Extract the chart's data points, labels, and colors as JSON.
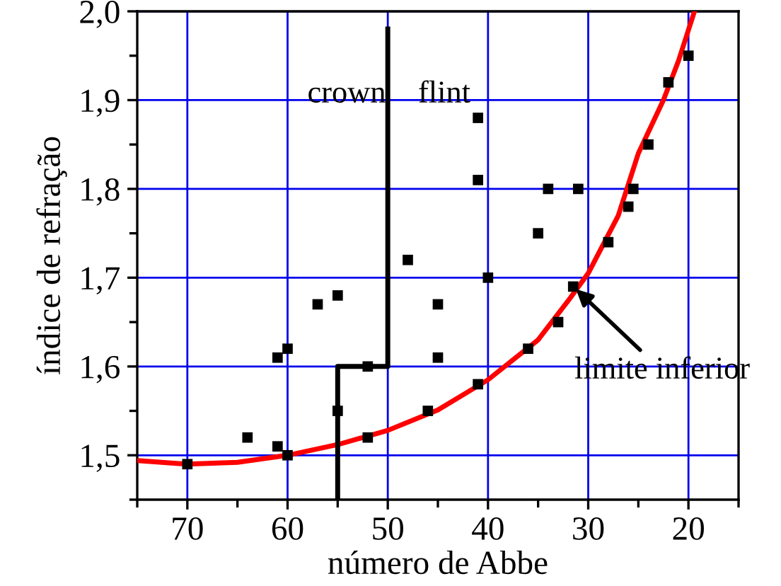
{
  "chart_data": {
    "type": "scatter",
    "xlabel": "número de Abbe",
    "ylabel": "índice de refração",
    "xlim": [
      75,
      15
    ],
    "ylim": [
      1.45,
      2.0
    ],
    "xticks": [
      {
        "value": 75,
        "label": null
      },
      {
        "value": 70,
        "label": "70"
      },
      {
        "value": 65,
        "label": null
      },
      {
        "value": 60,
        "label": "60"
      },
      {
        "value": 55,
        "label": null
      },
      {
        "value": 50,
        "label": "50"
      },
      {
        "value": 45,
        "label": null
      },
      {
        "value": 40,
        "label": "40"
      },
      {
        "value": 35,
        "label": null
      },
      {
        "value": 30,
        "label": "30"
      },
      {
        "value": 25,
        "label": null
      },
      {
        "value": 20,
        "label": "20"
      },
      {
        "value": 15,
        "label": null
      }
    ],
    "yticks": [
      {
        "value": 1.45,
        "label": null
      },
      {
        "value": 1.5,
        "label": "1,5"
      },
      {
        "value": 1.55,
        "label": null
      },
      {
        "value": 1.6,
        "label": "1,6"
      },
      {
        "value": 1.65,
        "label": null
      },
      {
        "value": 1.7,
        "label": "1,7"
      },
      {
        "value": 1.75,
        "label": null
      },
      {
        "value": 1.8,
        "label": "1,8"
      },
      {
        "value": 1.85,
        "label": null
      },
      {
        "value": 1.9,
        "label": "1,9"
      },
      {
        "value": 1.95,
        "label": null
      },
      {
        "value": 2.0,
        "label": "2,0"
      }
    ],
    "grid": true,
    "legend": false,
    "series": [
      {
        "marker": "square",
        "color": "#000000",
        "x": [
          70,
          64,
          61,
          60,
          61,
          60,
          57,
          55,
          55,
          52,
          52,
          48,
          45,
          45,
          46,
          41,
          41,
          40,
          41,
          35,
          34,
          31,
          36,
          33,
          31.5,
          28,
          26,
          25.5,
          24,
          22,
          20
        ],
        "values": [
          1.49,
          1.52,
          1.51,
          1.5,
          1.61,
          1.62,
          1.67,
          1.68,
          1.55,
          1.6,
          1.52,
          1.72,
          1.67,
          1.61,
          1.55,
          1.88,
          1.81,
          1.7,
          1.58,
          1.75,
          1.8,
          1.8,
          1.62,
          1.65,
          1.69,
          1.74,
          1.78,
          1.8,
          1.85,
          1.92,
          1.95
        ]
      },
      {
        "type": "line",
        "marker": "none",
        "line_style": "solid",
        "color": "#ff0000",
        "x": [
          75,
          70,
          65,
          60,
          55,
          50,
          45,
          40,
          35,
          32,
          30,
          27,
          25,
          22.5,
          21,
          19.4
        ],
        "values": [
          1.494,
          1.49,
          1.492,
          1.5,
          1.512,
          1.528,
          1.551,
          1.585,
          1.63,
          1.674,
          1.705,
          1.77,
          1.84,
          1.9,
          1.944,
          2.0
        ]
      },
      {
        "type": "line",
        "marker": "none",
        "line_style": "solid",
        "color": "#000000",
        "x": [
          55,
          55,
          50,
          50
        ],
        "values": [
          1.45,
          1.6,
          1.6,
          1.98
        ]
      }
    ],
    "annotations": [
      "crown",
      "flint",
      {
        "text": "limite inferior",
        "x": 31.5,
        "y": 1.69
      }
    ]
  }
}
